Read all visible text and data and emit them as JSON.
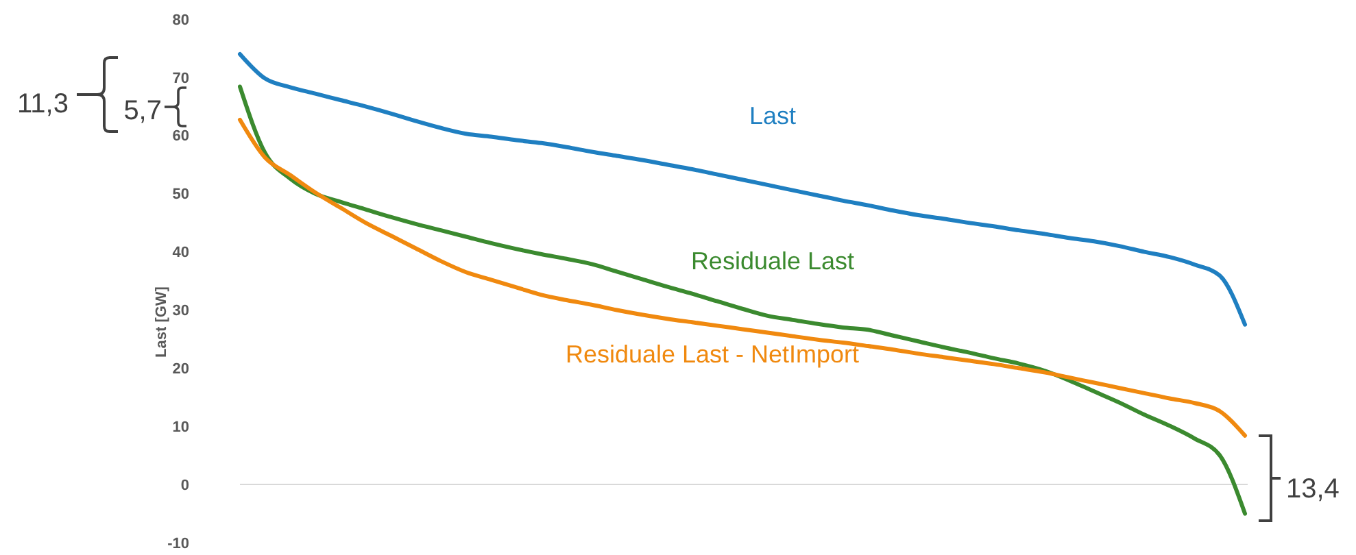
{
  "chart_data": {
    "type": "line",
    "ylabel": "Last [GW]",
    "categories": [
      null,
      null,
      null,
      null,
      null,
      null,
      null,
      null,
      null,
      null,
      null,
      null,
      null,
      null,
      null,
      null,
      null,
      null,
      null,
      null,
      null,
      null,
      null,
      null,
      null,
      null,
      null,
      null,
      null,
      null,
      null,
      null,
      null,
      null,
      null,
      null,
      null,
      null,
      null,
      null,
      null
    ],
    "ylim": [
      -10,
      80
    ],
    "yticks": [
      -10,
      0,
      10,
      20,
      30,
      40,
      50,
      60,
      70,
      80
    ],
    "legend": false,
    "line_style": "solid",
    "series": [
      {
        "name": "Last",
        "color": "#1f7fc1",
        "values": [
          74,
          69.8,
          68.3,
          67.2,
          66.1,
          65,
          63.8,
          62.5,
          61.3,
          60.3,
          59.8,
          59.2,
          58.7,
          58,
          57.2,
          56.5,
          55.8,
          55,
          54.2,
          53.3,
          52.4,
          51.5,
          50.6,
          49.7,
          48.8,
          48,
          47.1,
          46.3,
          45.7,
          45,
          44.4,
          43.7,
          43.1,
          42.4,
          41.8,
          41,
          40,
          39.1,
          37.8,
          35.9,
          27.5
        ]
      },
      {
        "name": "Residuale Last",
        "color": "#3b8a2f",
        "values": [
          68.4,
          57,
          52.6,
          50,
          48.6,
          47.3,
          46,
          44.8,
          43.7,
          42.6,
          41.5,
          40.5,
          39.6,
          38.8,
          37.9,
          36.6,
          35.3,
          34,
          32.8,
          31.5,
          30.2,
          29,
          28.3,
          27.6,
          27,
          26.6,
          25.6,
          24.6,
          23.6,
          22.7,
          21.7,
          20.8,
          19.6,
          17.9,
          16,
          14.1,
          12,
          10.1,
          7.9,
          5,
          -5
        ]
      },
      {
        "name": "Residuale Last - NetImport",
        "color": "#f0890f",
        "values": [
          62.7,
          56.2,
          53.2,
          50.2,
          47.6,
          45,
          42.8,
          40.6,
          38.4,
          36.5,
          35.2,
          33.9,
          32.6,
          31.7,
          30.9,
          30,
          29.2,
          28.5,
          27.9,
          27.3,
          26.7,
          26.1,
          25.5,
          24.9,
          24.4,
          23.8,
          23.2,
          22.5,
          21.9,
          21.3,
          20.7,
          20,
          19.3,
          18.4,
          17.5,
          16.6,
          15.7,
          14.8,
          14,
          12.6,
          8.4
        ]
      }
    ],
    "annotations": [
      "11,3",
      "5,7",
      "13,4"
    ]
  }
}
